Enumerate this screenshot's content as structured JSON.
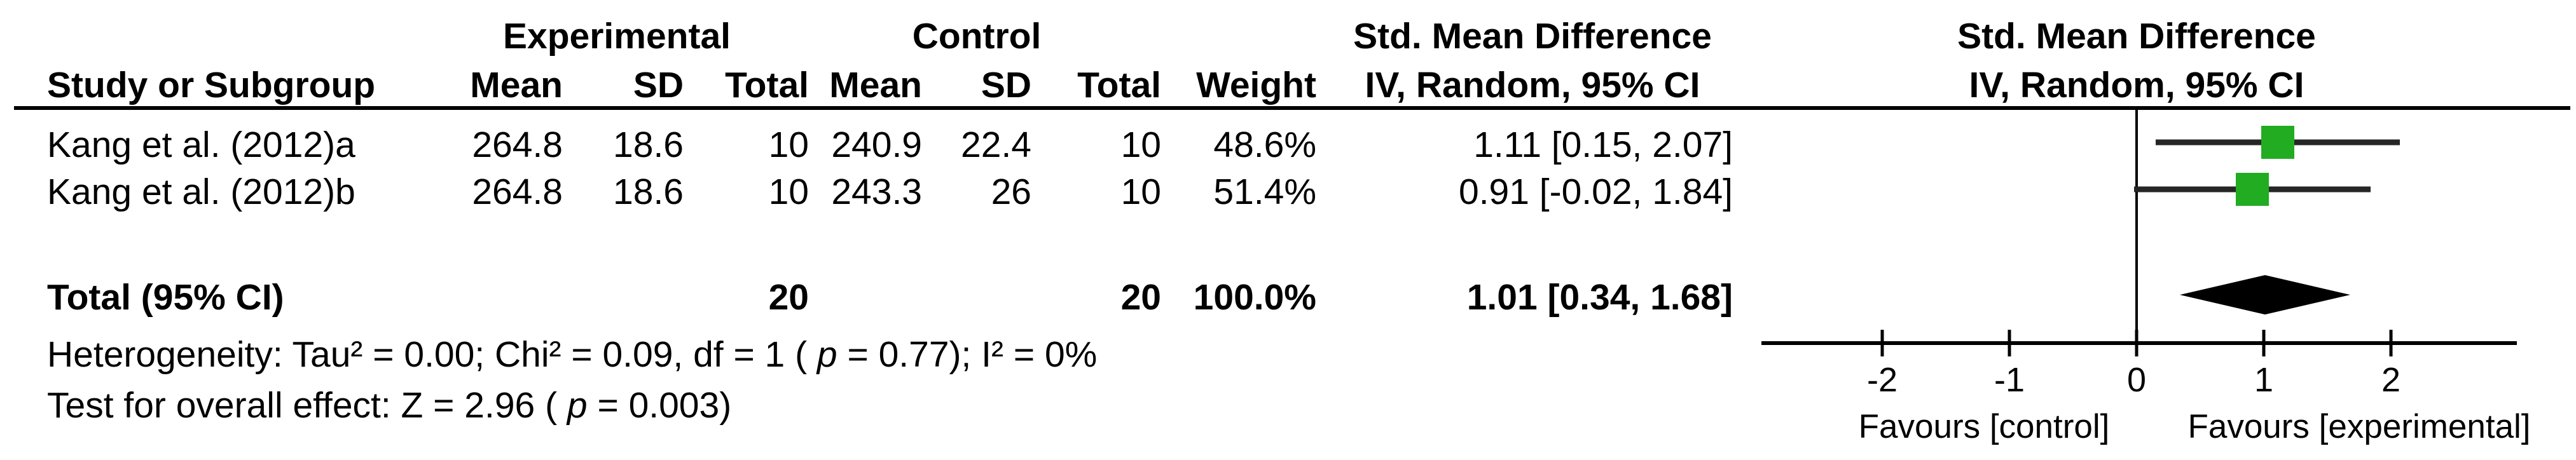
{
  "figure": {
    "background": "#ffffff",
    "text_color": "#000000"
  },
  "table": {
    "group_experimental": "Experimental",
    "group_control": "Control",
    "smd_header_left": "Std. Mean Difference",
    "smd_header_right": "Std. Mean Difference",
    "method_header_left": "IV, Random, 95% CI",
    "method_header_right": "IV, Random, 95% CI",
    "col_study": "Study or Subgroup",
    "col_mean1": "Mean",
    "col_sd1": "SD",
    "col_total1": "Total",
    "col_mean2": "Mean",
    "col_sd2": "SD",
    "col_total2": "Total",
    "col_weight": "Weight",
    "rows": [
      {
        "study": "Kang et al. (2012)a",
        "exp_mean": "264.8",
        "exp_sd": "18.6",
        "exp_total": "10",
        "ctl_mean": "240.9",
        "ctl_sd": "22.4",
        "ctl_total": "10",
        "weight": "48.6%",
        "ci_text": "1.11 [0.15, 2.07]"
      },
      {
        "study": "Kang et al. (2012)b",
        "exp_mean": "264.8",
        "exp_sd": "18.6",
        "exp_total": "10",
        "ctl_mean": "243.3",
        "ctl_sd": "26",
        "ctl_total": "10",
        "weight": "51.4%",
        "ci_text": "0.91 [-0.02, 1.84]"
      }
    ],
    "total_row": {
      "label": "Total (95% CI)",
      "exp_total": "20",
      "ctl_total": "20",
      "weight": "100.0%",
      "ci_text": "1.01 [0.34, 1.68]"
    },
    "footnotes": {
      "het_prefix": "Heterogeneity: Tau² = 0.00; Chi² = 0.09, df = 1 ( ",
      "het_p": "p",
      "het_suffix": " = 0.77); I² = 0%",
      "test_prefix": "Test for overall effect: Z = 2.96 ( ",
      "test_p": "p",
      "test_suffix": " = 0.003)"
    }
  },
  "chart_data": {
    "type": "forest",
    "effect_measure": "Std. Mean Difference",
    "model": "IV, Random, 95% CI",
    "studies": [
      {
        "label": "Kang et al. (2012)a",
        "smd": 1.11,
        "ci_low": 0.15,
        "ci_high": 2.07,
        "weight_pct": 48.6,
        "experimental": {
          "mean": 264.8,
          "sd": 18.6,
          "total": 10
        },
        "control": {
          "mean": 240.9,
          "sd": 22.4,
          "total": 10
        }
      },
      {
        "label": "Kang et al. (2012)b",
        "smd": 0.91,
        "ci_low": -0.02,
        "ci_high": 1.84,
        "weight_pct": 51.4,
        "experimental": {
          "mean": 264.8,
          "sd": 18.6,
          "total": 10
        },
        "control": {
          "mean": 243.3,
          "sd": 26,
          "total": 10
        }
      }
    ],
    "total": {
      "label": "Total (95% CI)",
      "smd": 1.01,
      "ci_low": 0.34,
      "ci_high": 1.68,
      "weight_pct": 100.0,
      "exp_total": 20,
      "ctl_total": 20
    },
    "heterogeneity": "Tau² = 0.00; Chi² = 0.09, df = 1 (p = 0.77); I² = 0%",
    "overall_effect_test": "Z = 2.96 (p = 0.003)",
    "axis": {
      "ticks": [
        -2,
        -1,
        0,
        1,
        2
      ],
      "xlim": [
        -3,
        3
      ],
      "left_label": "Favours [control]",
      "right_label": "Favours [experimental]",
      "grid": false
    },
    "marker_color": "#22AC22",
    "ci_line_color": "#262626",
    "diamond_color": "#000000",
    "axis_color": "#000000"
  }
}
